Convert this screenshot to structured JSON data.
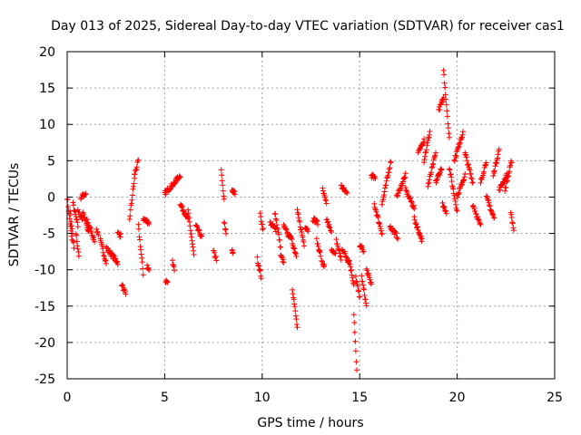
{
  "chart_data": {
    "type": "scatter",
    "title": "Day 013 of 2025, Sidereal Day-to-day VTEC variation (SDTVAR) for receiver cas1",
    "xlabel": "GPS time / hours",
    "ylabel": "SDTVAR / TECUs",
    "xlim": [
      0,
      25
    ],
    "ylim": [
      -25,
      20
    ],
    "x_ticks": [
      0,
      5,
      10,
      15,
      20,
      25
    ],
    "y_ticks": [
      -25,
      -20,
      -15,
      -10,
      -5,
      0,
      5,
      10,
      15,
      20
    ],
    "x_tick_labels": [
      "0",
      "5",
      "10",
      "15",
      "20",
      "25"
    ],
    "y_tick_labels": [
      "-25",
      "-20",
      "-15",
      "-10",
      "-5",
      "0",
      "5",
      "10",
      "15",
      "20"
    ],
    "grid": true,
    "marker": "+",
    "series": [
      {
        "name": "SDTVAR",
        "color": "#ff0000",
        "segments": [
          {
            "t": [
              0.0,
              0.25
            ],
            "v": [
              0,
              -6
            ]
          },
          {
            "t": [
              0.15,
              0.35
            ],
            "v": [
              -2,
              -7
            ]
          },
          {
            "t": [
              0.3,
              0.55
            ],
            "v": [
              -1,
              -4
            ]
          },
          {
            "t": [
              0.45,
              0.6
            ],
            "v": [
              -5,
              -8
            ]
          },
          {
            "t": [
              0.55,
              0.8
            ],
            "v": [
              -2,
              -3
            ]
          },
          {
            "t": [
              0.7,
              0.95
            ],
            "v": [
              0,
              0.5
            ]
          },
          {
            "t": [
              0.8,
              1.1
            ],
            "v": [
              -2,
              -5
            ]
          },
          {
            "t": [
              1.0,
              1.4
            ],
            "v": [
              -3,
              -6
            ]
          },
          {
            "t": [
              1.5,
              1.6
            ],
            "v": [
              -4.5,
              -5
            ]
          },
          {
            "t": [
              1.7,
              2.0
            ],
            "v": [
              -6,
              -9
            ]
          },
          {
            "t": [
              2.0,
              2.6
            ],
            "v": [
              -7,
              -9
            ]
          },
          {
            "t": [
              2.6,
              2.75
            ],
            "v": [
              -5,
              -5.3
            ]
          },
          {
            "t": [
              2.8,
              3.0
            ],
            "v": [
              -12,
              -13.5
            ]
          },
          {
            "t": [
              3.2,
              3.45
            ],
            "v": [
              -3,
              2.5
            ]
          },
          {
            "t": [
              3.45,
              3.65
            ],
            "v": [
              3,
              5
            ]
          },
          {
            "t": [
              3.65,
              3.9
            ],
            "v": [
              -4,
              -10.5
            ]
          },
          {
            "t": [
              3.9,
              4.2
            ],
            "v": [
              -3,
              -3.5
            ]
          },
          {
            "t": [
              4.1,
              4.2
            ],
            "v": [
              -9.5,
              -10
            ]
          },
          {
            "t": [
              5.05,
              5.15
            ],
            "v": [
              -11.5,
              -12
            ]
          },
          {
            "t": [
              5.0,
              5.5
            ],
            "v": [
              0.5,
              2
            ]
          },
          {
            "t": [
              5.4,
              5.5
            ],
            "v": [
              -9,
              -10
            ]
          },
          {
            "t": [
              5.5,
              5.8
            ],
            "v": [
              2,
              3
            ]
          },
          {
            "t": [
              5.8,
              6.2
            ],
            "v": [
              -1,
              -3
            ]
          },
          {
            "t": [
              6.2,
              6.5
            ],
            "v": [
              -2,
              -8
            ]
          },
          {
            "t": [
              6.6,
              6.9
            ],
            "v": [
              -4,
              -5.5
            ]
          },
          {
            "t": [
              7.5,
              7.65
            ],
            "v": [
              -7.5,
              -8.5
            ]
          },
          {
            "t": [
              7.9,
              8.05
            ],
            "v": [
              3.5,
              -0.5
            ]
          },
          {
            "t": [
              8.05,
              8.15
            ],
            "v": [
              -3.5,
              -5
            ]
          },
          {
            "t": [
              8.45,
              8.6
            ],
            "v": [
              1,
              0.5
            ]
          },
          {
            "t": [
              8.45,
              8.5
            ],
            "v": [
              -7.5,
              -7.5
            ]
          },
          {
            "t": [
              9.75,
              9.95
            ],
            "v": [
              -8.5,
              -11
            ]
          },
          {
            "t": [
              9.9,
              10.05
            ],
            "v": [
              -2.5,
              -4.5
            ]
          },
          {
            "t": [
              10.4,
              10.7
            ],
            "v": [
              -3.5,
              -4.5
            ]
          },
          {
            "t": [
              10.65,
              10.95
            ],
            "v": [
              -2,
              -7
            ]
          },
          {
            "t": [
              10.95,
              11.1
            ],
            "v": [
              -8,
              -9
            ]
          },
          {
            "t": [
              11.1,
              11.4
            ],
            "v": [
              -4,
              -5.5
            ]
          },
          {
            "t": [
              11.4,
              11.75
            ],
            "v": [
              -5,
              -8
            ]
          },
          {
            "t": [
              11.55,
              11.8
            ],
            "v": [
              -12.5,
              -18
            ]
          },
          {
            "t": [
              11.8,
              12.15
            ],
            "v": [
              -2,
              -6.5
            ]
          },
          {
            "t": [
              12.2,
              12.35
            ],
            "v": [
              -4,
              -4.5
            ]
          },
          {
            "t": [
              12.6,
              12.85
            ],
            "v": [
              -3,
              -3.5
            ]
          },
          {
            "t": [
              12.8,
              13.0
            ],
            "v": [
              -6,
              -8
            ]
          },
          {
            "t": [
              13.05,
              13.2
            ],
            "v": [
              -9,
              -9.5
            ]
          },
          {
            "t": [
              13.1,
              13.3
            ],
            "v": [
              1,
              -1
            ]
          },
          {
            "t": [
              13.3,
              13.55
            ],
            "v": [
              -3,
              -5
            ]
          },
          {
            "t": [
              13.55,
              13.75
            ],
            "v": [
              -7,
              -8
            ]
          },
          {
            "t": [
              13.8,
              14.05
            ],
            "v": [
              -6,
              -8.5
            ]
          },
          {
            "t": [
              14.05,
              14.35
            ],
            "v": [
              1.5,
              0.5
            ]
          },
          {
            "t": [
              14.1,
              14.45
            ],
            "v": [
              -7,
              -9
            ]
          },
          {
            "t": [
              14.45,
              14.7
            ],
            "v": [
              -8.5,
              -12
            ]
          },
          {
            "t": [
              14.7,
              14.85
            ],
            "v": [
              -16,
              -24
            ]
          },
          {
            "t": [
              14.8,
              15.0
            ],
            "v": [
              -11,
              -14
            ]
          },
          {
            "t": [
              15.0,
              15.2
            ],
            "v": [
              -6.5,
              -7.5
            ]
          },
          {
            "t": [
              15.1,
              15.35
            ],
            "v": [
              -11,
              -15
            ]
          },
          {
            "t": [
              15.35,
              15.6
            ],
            "v": [
              -10,
              -12
            ]
          },
          {
            "t": [
              15.6,
              15.8
            ],
            "v": [
              3,
              2.5
            ]
          },
          {
            "t": [
              15.75,
              16.15
            ],
            "v": [
              -1,
              -5
            ]
          },
          {
            "t": [
              16.15,
              16.6
            ],
            "v": [
              -1,
              5
            ]
          },
          {
            "t": [
              16.55,
              16.95
            ],
            "v": [
              -4,
              -5.5
            ]
          },
          {
            "t": [
              16.9,
              17.35
            ],
            "v": [
              0,
              3
            ]
          },
          {
            "t": [
              17.35,
              17.8
            ],
            "v": [
              1,
              -1.5
            ]
          },
          {
            "t": [
              17.8,
              18.2
            ],
            "v": [
              -3,
              -6
            ]
          },
          {
            "t": [
              18.0,
              18.3
            ],
            "v": [
              6,
              8
            ]
          },
          {
            "t": [
              18.3,
              18.6
            ],
            "v": [
              5,
              9
            ]
          },
          {
            "t": [
              18.5,
              18.9
            ],
            "v": [
              1.5,
              6
            ]
          },
          {
            "t": [
              18.9,
              19.2
            ],
            "v": [
              2,
              4
            ]
          },
          {
            "t": [
              19.05,
              19.3
            ],
            "v": [
              12,
              13.5
            ]
          },
          {
            "t": [
              19.3,
              19.6
            ],
            "v": [
              17.5,
              8
            ]
          },
          {
            "t": [
              19.25,
              19.45
            ],
            "v": [
              -1,
              -2
            ]
          },
          {
            "t": [
              19.6,
              20.0
            ],
            "v": [
              4,
              -2
            ]
          },
          {
            "t": [
              19.85,
              20.3
            ],
            "v": [
              5,
              9
            ]
          },
          {
            "t": [
              20.0,
              20.4
            ],
            "v": [
              0,
              3
            ]
          },
          {
            "t": [
              20.4,
              20.8
            ],
            "v": [
              6,
              2
            ]
          },
          {
            "t": [
              20.8,
              21.2
            ],
            "v": [
              -1,
              -4
            ]
          },
          {
            "t": [
              21.2,
              21.5
            ],
            "v": [
              2,
              5
            ]
          },
          {
            "t": [
              21.5,
              21.9
            ],
            "v": [
              0,
              -3
            ]
          },
          {
            "t": [
              21.85,
              22.15
            ],
            "v": [
              3,
              6.5
            ]
          },
          {
            "t": [
              22.15,
              22.55
            ],
            "v": [
              1,
              3
            ]
          },
          {
            "t": [
              22.45,
              22.8
            ],
            "v": [
              1,
              5
            ]
          },
          {
            "t": [
              22.75,
              22.9
            ],
            "v": [
              -2,
              -4.5
            ]
          }
        ]
      }
    ]
  }
}
